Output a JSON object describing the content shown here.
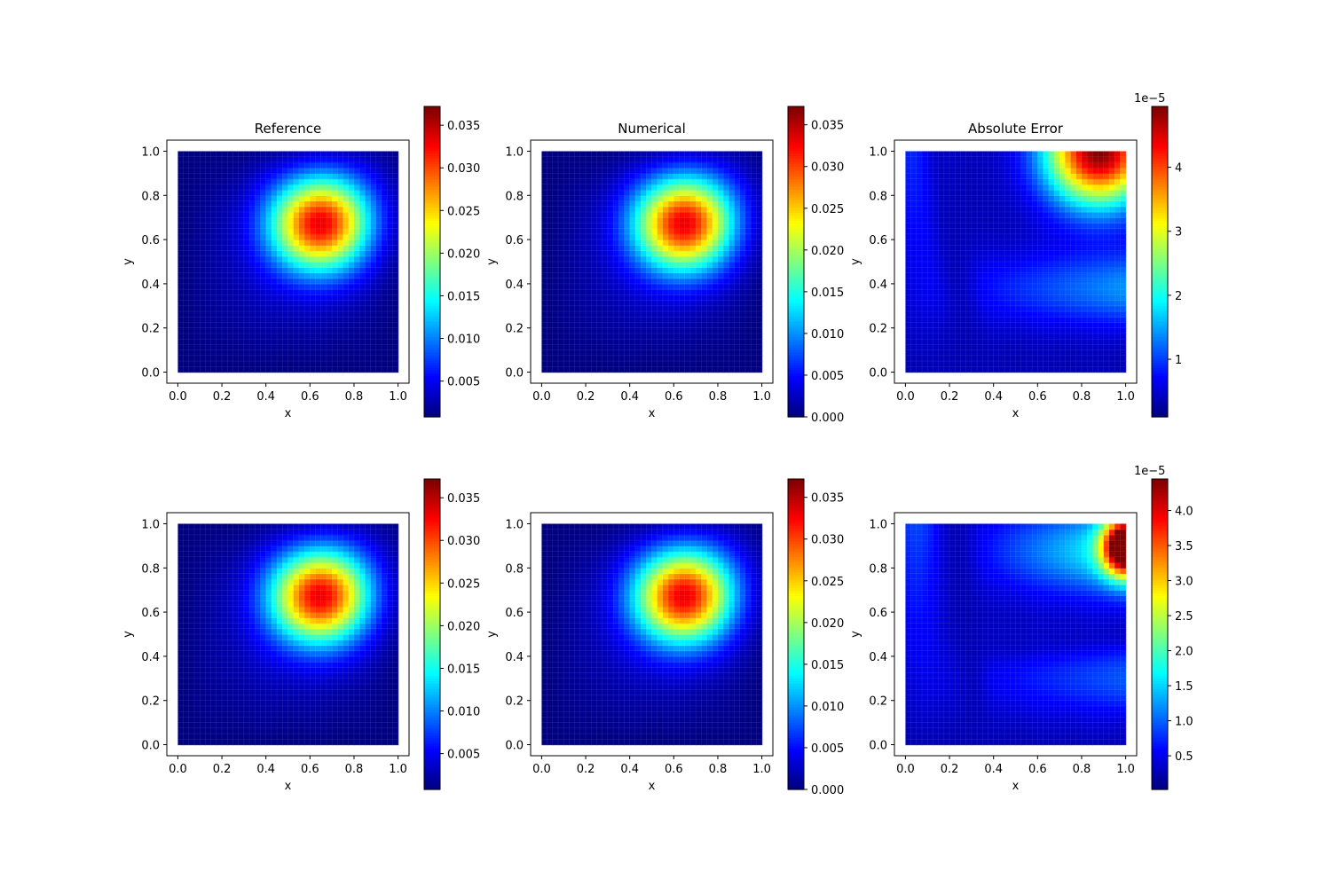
{
  "chart_data": [
    {
      "type": "heatmap",
      "title": "Reference",
      "xlabel": "x",
      "ylabel": "y",
      "xlim": [
        -0.05,
        1.05
      ],
      "ylim": [
        -0.05,
        1.05
      ],
      "xticks": [
        "0.0",
        "0.2",
        "0.4",
        "0.6",
        "0.8",
        "1.0"
      ],
      "yticks": [
        "0.0",
        "0.2",
        "0.4",
        "0.6",
        "0.8",
        "1.0"
      ],
      "field": {
        "kind": "bump",
        "peak_x": 0.67,
        "peak_y": 0.7,
        "max": 0.037
      },
      "colorbar": {
        "range": [
          0.0008,
          0.0372
        ],
        "offset_label": "",
        "ticks": [
          "0.005",
          "0.010",
          "0.015",
          "0.020",
          "0.025",
          "0.030",
          "0.035"
        ],
        "tick_values": [
          0.005,
          0.01,
          0.015,
          0.02,
          0.025,
          0.03,
          0.035
        ]
      },
      "colormap": "jet",
      "grid": false
    },
    {
      "type": "heatmap",
      "title": "Numerical",
      "xlabel": "x",
      "ylabel": "y",
      "xlim": [
        -0.05,
        1.05
      ],
      "ylim": [
        -0.05,
        1.05
      ],
      "xticks": [
        "0.0",
        "0.2",
        "0.4",
        "0.6",
        "0.8",
        "1.0"
      ],
      "yticks": [
        "0.0",
        "0.2",
        "0.4",
        "0.6",
        "0.8",
        "1.0"
      ],
      "field": {
        "kind": "bump",
        "peak_x": 0.66,
        "peak_y": 0.7,
        "max": 0.037
      },
      "colorbar": {
        "range": [
          0.0,
          0.0372
        ],
        "offset_label": "",
        "ticks": [
          "0.000",
          "0.005",
          "0.010",
          "0.015",
          "0.020",
          "0.025",
          "0.030",
          "0.035"
        ],
        "tick_values": [
          0.0,
          0.005,
          0.01,
          0.015,
          0.02,
          0.025,
          0.03,
          0.035
        ]
      },
      "colormap": "jet",
      "grid": false
    },
    {
      "type": "heatmap",
      "title": "Absolute Error",
      "xlabel": "x",
      "ylabel": "y",
      "xlim": [
        -0.05,
        1.05
      ],
      "ylim": [
        -0.05,
        1.05
      ],
      "xticks": [
        "0.0",
        "0.2",
        "0.4",
        "0.6",
        "0.8",
        "1.0"
      ],
      "yticks": [
        "0.0",
        "0.2",
        "0.4",
        "0.6",
        "0.8",
        "1.0"
      ],
      "field": {
        "kind": "error_top",
        "peak_x": 0.85,
        "peak_y": 1.0,
        "max": 4.9e-05
      },
      "colorbar": {
        "range": [
          0.1,
          4.95
        ],
        "offset_label": "1e−5",
        "ticks": [
          "1",
          "2",
          "3",
          "4"
        ],
        "tick_values": [
          1,
          2,
          3,
          4
        ]
      },
      "colormap": "jet",
      "grid": false
    },
    {
      "type": "heatmap",
      "title": "",
      "xlabel": "x",
      "ylabel": "y",
      "xlim": [
        -0.05,
        1.05
      ],
      "ylim": [
        -0.05,
        1.05
      ],
      "xticks": [
        "0.0",
        "0.2",
        "0.4",
        "0.6",
        "0.8",
        "1.0"
      ],
      "yticks": [
        "0.0",
        "0.2",
        "0.4",
        "0.6",
        "0.8",
        "1.0"
      ],
      "field": {
        "kind": "bump",
        "peak_x": 0.67,
        "peak_y": 0.7,
        "max": 0.037
      },
      "colorbar": {
        "range": [
          0.0008,
          0.0372
        ],
        "offset_label": "",
        "ticks": [
          "0.005",
          "0.010",
          "0.015",
          "0.020",
          "0.025",
          "0.030",
          "0.035"
        ],
        "tick_values": [
          0.005,
          0.01,
          0.015,
          0.02,
          0.025,
          0.03,
          0.035
        ]
      },
      "colormap": "jet",
      "grid": false
    },
    {
      "type": "heatmap",
      "title": "",
      "xlabel": "x",
      "ylabel": "y",
      "xlim": [
        -0.05,
        1.05
      ],
      "ylim": [
        -0.05,
        1.05
      ],
      "xticks": [
        "0.0",
        "0.2",
        "0.4",
        "0.6",
        "0.8",
        "1.0"
      ],
      "yticks": [
        "0.0",
        "0.2",
        "0.4",
        "0.6",
        "0.8",
        "1.0"
      ],
      "field": {
        "kind": "bump",
        "peak_x": 0.66,
        "peak_y": 0.7,
        "max": 0.037
      },
      "colorbar": {
        "range": [
          0.0,
          0.0372
        ],
        "offset_label": "",
        "ticks": [
          "0.000",
          "0.005",
          "0.010",
          "0.015",
          "0.020",
          "0.025",
          "0.030",
          "0.035"
        ],
        "tick_values": [
          0.0,
          0.005,
          0.01,
          0.015,
          0.02,
          0.025,
          0.03,
          0.035
        ]
      },
      "colormap": "jet",
      "grid": false
    },
    {
      "type": "heatmap",
      "title": "",
      "xlabel": "x",
      "ylabel": "y",
      "xlim": [
        -0.05,
        1.05
      ],
      "ylim": [
        -0.05,
        1.05
      ],
      "xticks": [
        "0.0",
        "0.2",
        "0.4",
        "0.6",
        "0.8",
        "1.0"
      ],
      "yticks": [
        "0.0",
        "0.2",
        "0.4",
        "0.6",
        "0.8",
        "1.0"
      ],
      "field": {
        "kind": "error_right",
        "peak_x": 1.0,
        "peak_y": 0.9,
        "max": 4.4e-05
      },
      "colorbar": {
        "range": [
          0.02,
          4.45
        ],
        "offset_label": "1e−5",
        "ticks": [
          "0.5",
          "1.0",
          "1.5",
          "2.0",
          "2.5",
          "3.0",
          "3.5",
          "4.0"
        ],
        "tick_values": [
          0.5,
          1.0,
          1.5,
          2.0,
          2.5,
          3.0,
          3.5,
          4.0
        ]
      },
      "colormap": "jet",
      "grid": false
    }
  ]
}
